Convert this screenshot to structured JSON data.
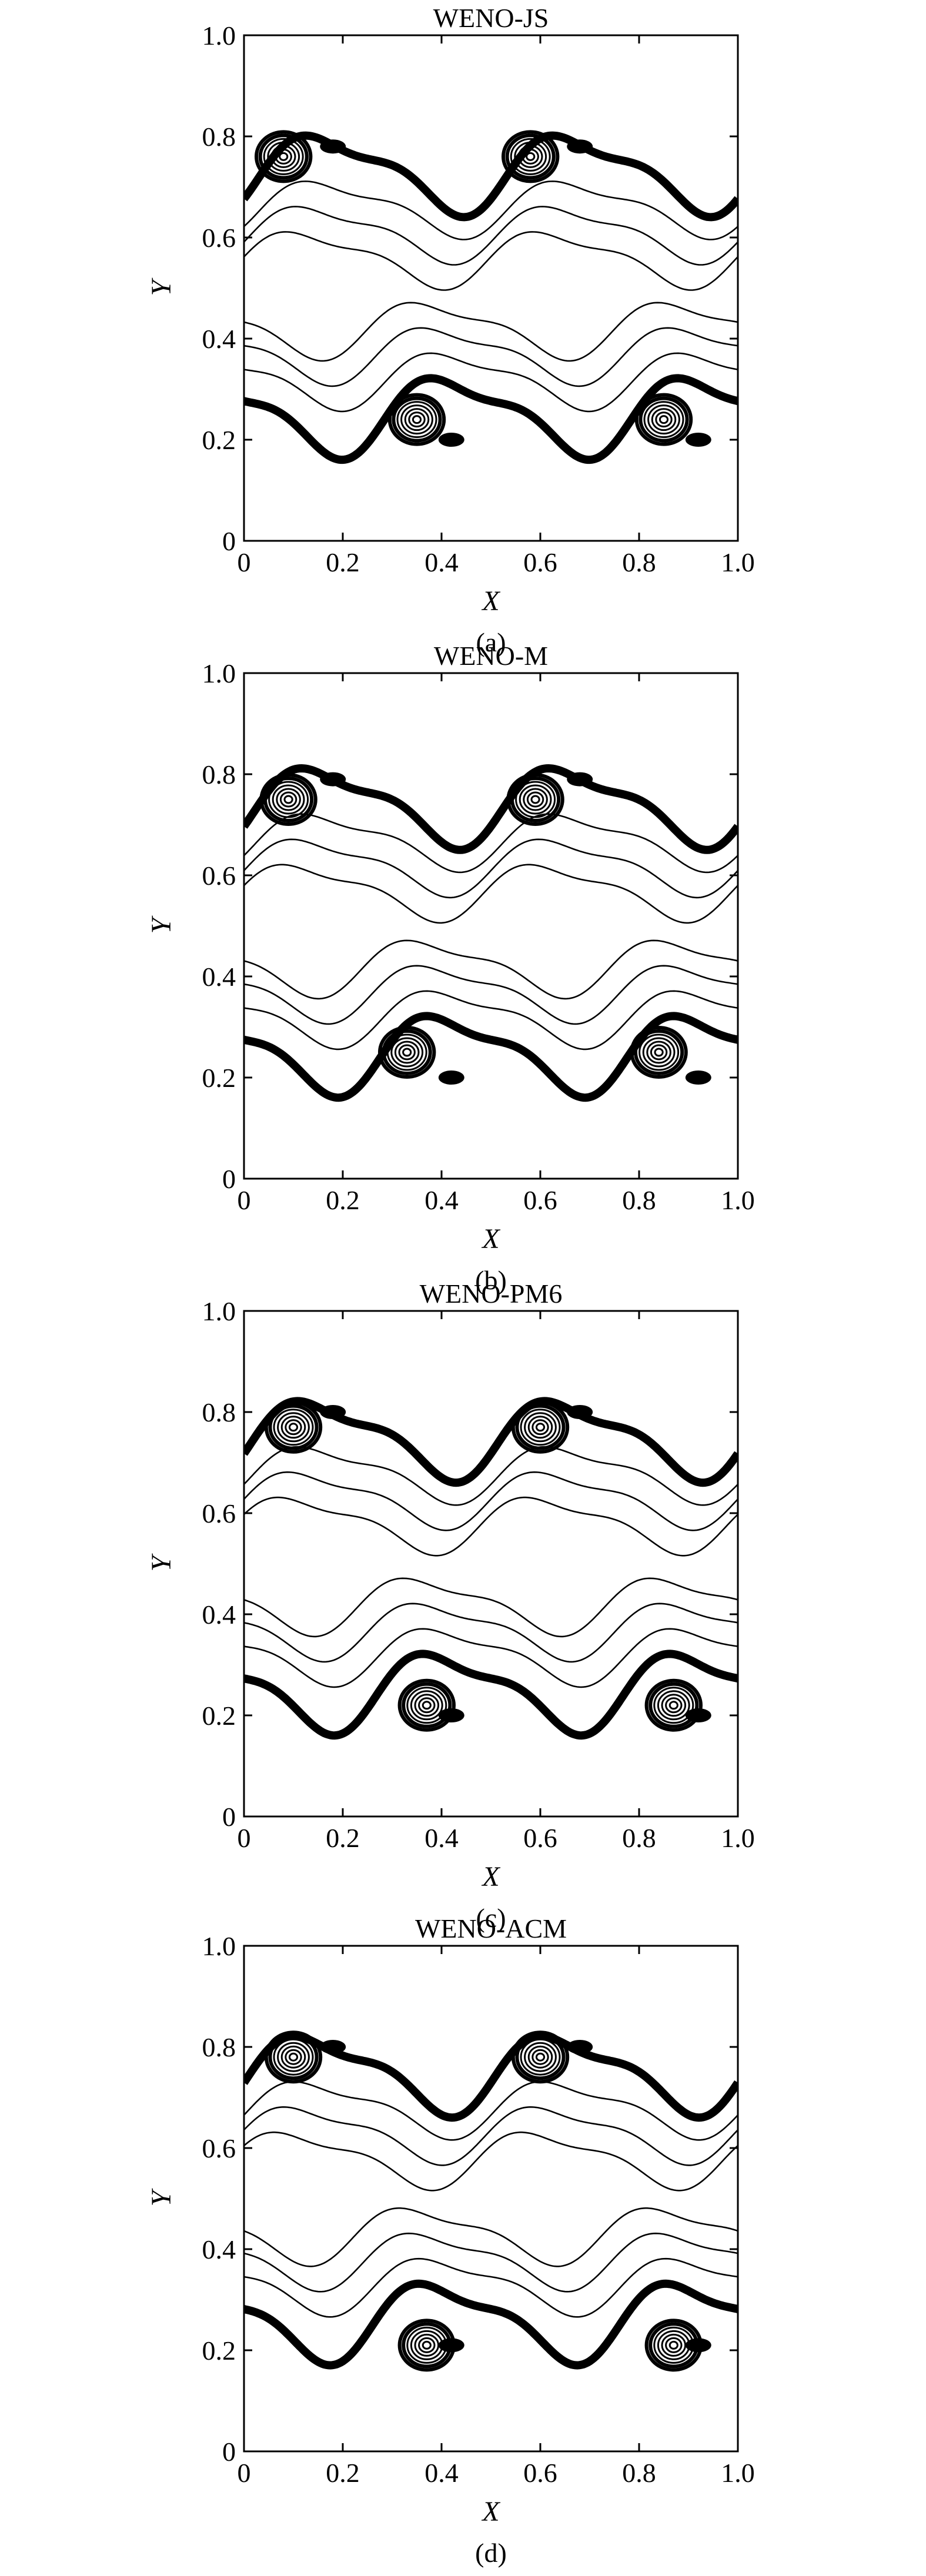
{
  "chart_data": [
    {
      "type": "contour",
      "panel_label": "(a)",
      "title": "WENO-JS",
      "xlabel": "X",
      "ylabel": "Y",
      "xlim": [
        0,
        1.0
      ],
      "ylim": [
        0,
        1.0
      ],
      "xticks": [
        "0",
        "0.2",
        "0.4",
        "0.6",
        "0.8",
        "1.0"
      ],
      "yticks": [
        "0",
        "0.2",
        "0.4",
        "0.6",
        "0.8",
        "1.0"
      ],
      "grid": false,
      "features": {
        "upper_interface_mean_y": 0.73,
        "lower_interface_mean_y": 0.25,
        "period_x": 0.5,
        "vortex_centers": [
          [
            0.08,
            0.76
          ],
          [
            0.58,
            0.76
          ],
          [
            0.35,
            0.24
          ],
          [
            0.85,
            0.24
          ]
        ]
      }
    },
    {
      "type": "contour",
      "panel_label": "(b)",
      "title": "WENO-M",
      "xlabel": "X",
      "ylabel": "Y",
      "xlim": [
        0,
        1.0
      ],
      "ylim": [
        0,
        1.0
      ],
      "xticks": [
        "0",
        "0.2",
        "0.4",
        "0.6",
        "0.8",
        "1.0"
      ],
      "yticks": [
        "0",
        "0.2",
        "0.4",
        "0.6",
        "0.8",
        "1.0"
      ],
      "grid": false,
      "features": {
        "upper_interface_mean_y": 0.74,
        "lower_interface_mean_y": 0.25,
        "period_x": 0.5,
        "vortex_centers": [
          [
            0.09,
            0.75
          ],
          [
            0.59,
            0.75
          ],
          [
            0.33,
            0.25
          ],
          [
            0.84,
            0.25
          ]
        ]
      }
    },
    {
      "type": "contour",
      "panel_label": "(c)",
      "title": "WENO-PM6",
      "xlabel": "X",
      "ylabel": "Y",
      "xlim": [
        0,
        1.0
      ],
      "ylim": [
        0,
        1.0
      ],
      "xticks": [
        "0",
        "0.2",
        "0.4",
        "0.6",
        "0.8",
        "1.0"
      ],
      "yticks": [
        "0",
        "0.2",
        "0.4",
        "0.6",
        "0.8",
        "1.0"
      ],
      "grid": false,
      "features": {
        "upper_interface_mean_y": 0.75,
        "lower_interface_mean_y": 0.25,
        "period_x": 0.5,
        "vortex_centers": [
          [
            0.1,
            0.77
          ],
          [
            0.6,
            0.77
          ],
          [
            0.37,
            0.22
          ],
          [
            0.87,
            0.22
          ]
        ]
      }
    },
    {
      "type": "contour",
      "panel_label": "(d)",
      "title": "WENO-ACM",
      "xlabel": "X",
      "ylabel": "Y",
      "xlim": [
        0,
        1.0
      ],
      "ylim": [
        0,
        1.0
      ],
      "xticks": [
        "0",
        "0.2",
        "0.4",
        "0.6",
        "0.8",
        "1.0"
      ],
      "yticks": [
        "0",
        "0.2",
        "0.4",
        "0.6",
        "0.8",
        "1.0"
      ],
      "grid": false,
      "features": {
        "upper_interface_mean_y": 0.75,
        "lower_interface_mean_y": 0.26,
        "period_x": 0.5,
        "vortex_centers": [
          [
            0.1,
            0.78
          ],
          [
            0.6,
            0.78
          ],
          [
            0.37,
            0.21
          ],
          [
            0.87,
            0.21
          ]
        ]
      }
    }
  ]
}
